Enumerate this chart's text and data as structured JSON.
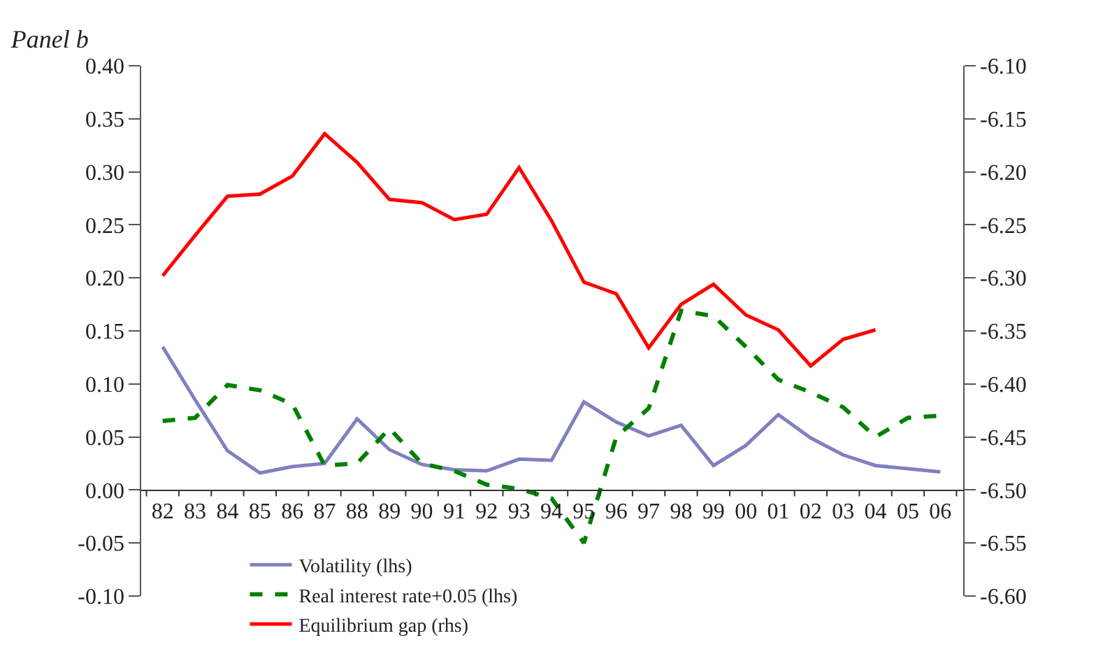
{
  "chart_data": {
    "type": "line",
    "title": "Panel b",
    "categories": [
      "82",
      "83",
      "84",
      "85",
      "86",
      "87",
      "88",
      "89",
      "90",
      "91",
      "92",
      "93",
      "94",
      "95",
      "96",
      "97",
      "98",
      "99",
      "00",
      "01",
      "02",
      "03",
      "04",
      "05",
      "06"
    ],
    "series": [
      {
        "name": "Volatility (lhs)",
        "color": "#8080c0",
        "line_style": "solid",
        "values": [
          0.135,
          0.085,
          0.037,
          0.016,
          0.022,
          0.025,
          0.067,
          0.038,
          0.024,
          0.019,
          0.018,
          0.029,
          0.028,
          0.083,
          0.064,
          0.051,
          0.061,
          0.023,
          0.042,
          0.071,
          0.049,
          0.033,
          0.023,
          0.02,
          0.017
        ]
      },
      {
        "name": "Real interest rate+0.05 (lhs)",
        "color": "#008000",
        "line_style": "dashed",
        "values": [
          0.065,
          0.068,
          0.099,
          0.094,
          0.081,
          0.023,
          0.025,
          0.058,
          0.025,
          0.018,
          0.005,
          0.001,
          -0.008,
          -0.05,
          0.05,
          0.077,
          0.169,
          0.164,
          0.135,
          0.104,
          0.092,
          0.078,
          0.05,
          0.068,
          0.07
        ]
      },
      {
        "name": "Equilibrium gap (rhs)",
        "color": "#ff0000",
        "line_style": "solid",
        "axis": "y2",
        "values": [
          -6.298,
          -6.26,
          -6.223,
          -6.221,
          -6.204,
          -6.164,
          -6.191,
          -6.226,
          -6.229,
          -6.245,
          -6.24,
          -6.196,
          -6.246,
          -6.304,
          -6.315,
          -6.366,
          -6.325,
          -6.306,
          -6.335,
          -6.349,
          -6.383,
          -6.358,
          -6.349,
          null,
          null
        ]
      }
    ],
    "ylim": [
      -0.1,
      0.4
    ],
    "yticks": [
      {
        "value": -0.1,
        "label": "-0.10"
      },
      {
        "value": -0.05,
        "label": "-0.05"
      },
      {
        "value": 0,
        "label": "0.00"
      },
      {
        "value": 0.05,
        "label": "0.05"
      },
      {
        "value": 0.1,
        "label": "0.10"
      },
      {
        "value": 0.15,
        "label": "0.15"
      },
      {
        "value": 0.2,
        "label": "0.20"
      },
      {
        "value": 0.25,
        "label": "0.25"
      },
      {
        "value": 0.3,
        "label": "0.30"
      },
      {
        "value": 0.35,
        "label": "0.35"
      },
      {
        "value": 0.4,
        "label": "0.40"
      }
    ],
    "y2lim": [
      -6.6,
      -6.1
    ],
    "y2ticks": [
      {
        "value": -6.6,
        "label": "-6.60"
      },
      {
        "value": -6.55,
        "label": "-6.55"
      },
      {
        "value": -6.5,
        "label": "-6.50"
      },
      {
        "value": -6.45,
        "label": "-6.45"
      },
      {
        "value": -6.4,
        "label": "-6.40"
      },
      {
        "value": -6.35,
        "label": "-6.35"
      },
      {
        "value": -6.3,
        "label": "-6.30"
      },
      {
        "value": -6.25,
        "label": "-6.25"
      },
      {
        "value": -6.2,
        "label": "-6.20"
      },
      {
        "value": -6.15,
        "label": "-6.15"
      },
      {
        "value": -6.1,
        "label": "-6.10"
      }
    ],
    "legend": "bottom",
    "marker": "none"
  }
}
